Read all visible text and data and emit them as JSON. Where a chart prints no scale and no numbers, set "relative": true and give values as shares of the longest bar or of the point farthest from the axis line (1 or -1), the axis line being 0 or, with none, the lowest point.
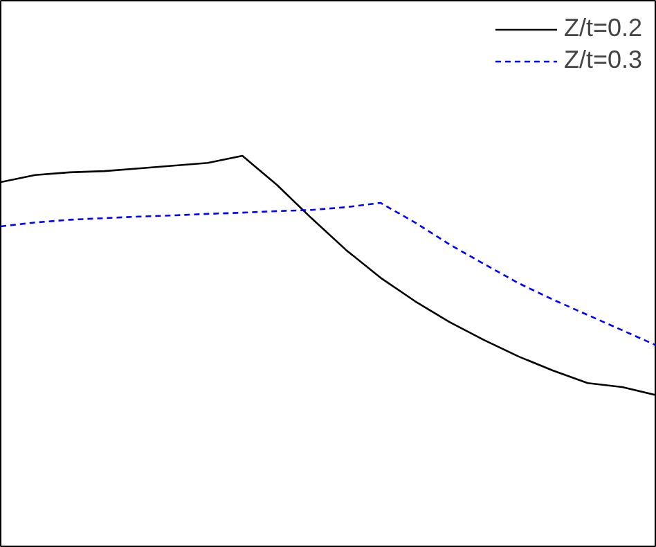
{
  "chart_data": {
    "type": "line",
    "relative": true,
    "categories": [
      null,
      null,
      null,
      null,
      null,
      null,
      null,
      null,
      null,
      null,
      null,
      null,
      null,
      null,
      null,
      null,
      null,
      null,
      null,
      null
    ],
    "series": [
      {
        "name": "Z/t=0.2",
        "color": "#000000",
        "line_style": "solid",
        "values": [
          0.933,
          0.951,
          0.958,
          0.961,
          0.968,
          0.975,
          0.982,
          1.0,
          0.926,
          0.841,
          0.76,
          0.689,
          0.629,
          0.576,
          0.53,
          0.488,
          0.452,
          0.42,
          0.41,
          0.389
        ]
      },
      {
        "name": "Z/t=0.3",
        "color": "#0000ff",
        "line_style": "dashed",
        "values": [
          0.82,
          0.83,
          0.837,
          0.841,
          0.845,
          0.848,
          0.852,
          0.855,
          0.859,
          0.862,
          0.869,
          0.88,
          0.83,
          0.774,
          0.724,
          0.675,
          0.633,
          0.594,
          0.555,
          0.516
        ]
      }
    ],
    "legend": "top right",
    "grid": false,
    "marker": "none"
  }
}
